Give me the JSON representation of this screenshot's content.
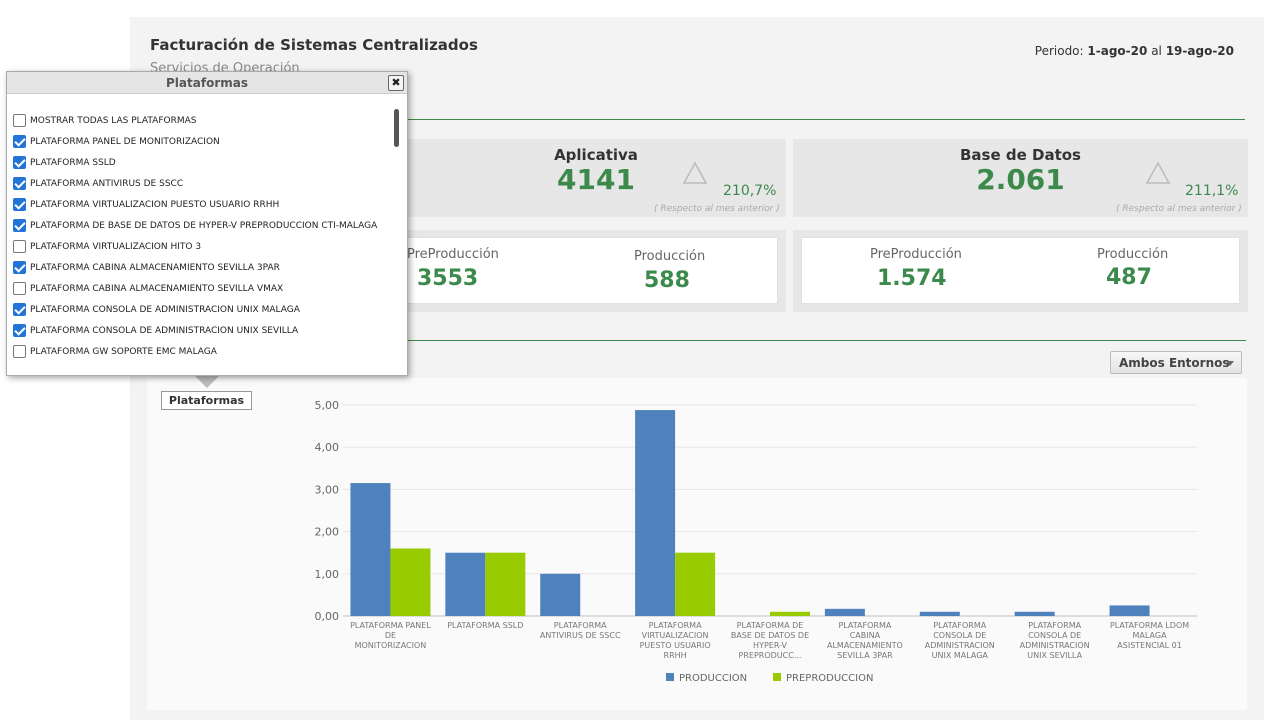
{
  "header": {
    "title": "Facturación de Sistemas Centralizados",
    "subtitle": "Servicios de Operación",
    "periodo_label": "Periodo:",
    "periodo_from": "1-ago-20",
    "periodo_sep": "al",
    "periodo_to": "19-ago-20"
  },
  "cards": [
    {
      "title": "Aplicativa",
      "value": "4141",
      "pct": "210,7%",
      "note": "( Respecto al mes anterior )",
      "pre_label": "PreProducción",
      "pre_value": "3553",
      "pro_label": "Producción",
      "pro_value": "588"
    },
    {
      "title": "Base de Datos",
      "value": "2.061",
      "pct": "211,1%",
      "note": "( Respecto al mes anterior )",
      "pre_label": "PreProducción",
      "pre_value": "1.574",
      "pro_label": "Producción",
      "pro_value": "487"
    }
  ],
  "entornos_dropdown": {
    "selected": "Ambos Entornos"
  },
  "plataformas_button": "Plataformas",
  "popup": {
    "title": "Plataformas",
    "close": "✖",
    "options": [
      {
        "label": "MOSTRAR TODAS LAS PLATAFORMAS",
        "checked": false
      },
      {
        "label": "PLATAFORMA PANEL DE MONITORIZACION",
        "checked": true
      },
      {
        "label": "PLATAFORMA SSLD",
        "checked": true
      },
      {
        "label": "PLATAFORMA ANTIVIRUS DE SSCC",
        "checked": true
      },
      {
        "label": "PLATAFORMA VIRTUALIZACION PUESTO USUARIO RRHH",
        "checked": true
      },
      {
        "label": "PLATAFORMA DE BASE DE DATOS DE HYPER-V PREPRODUCCION CTI-MALAGA",
        "checked": true
      },
      {
        "label": "PLATAFORMA VIRTUALIZACION HITO 3",
        "checked": false
      },
      {
        "label": "PLATAFORMA CABINA ALMACENAMIENTO SEVILLA 3PAR",
        "checked": true
      },
      {
        "label": "PLATAFORMA CABINA ALMACENAMIENTO SEVILLA VMAX",
        "checked": false
      },
      {
        "label": "PLATAFORMA CONSOLA DE ADMINISTRACION UNIX MALAGA",
        "checked": true
      },
      {
        "label": "PLATAFORMA CONSOLA DE ADMINISTRACION UNIX SEVILLA",
        "checked": true
      },
      {
        "label": "PLATAFORMA GW SOPORTE EMC MALAGA",
        "checked": false
      }
    ]
  },
  "colors": {
    "produccion": "#4f81bd",
    "preproduccion": "#99cc00",
    "accent": "#3c8a4b"
  },
  "chart_data": {
    "type": "bar",
    "categories": [
      [
        "PLATAFORMA PANEL",
        "DE",
        "MONITORIZACION"
      ],
      [
        "PLATAFORMA SSLD"
      ],
      [
        "PLATAFORMA",
        "ANTIVIRUS DE SSCC"
      ],
      [
        "PLATAFORMA",
        "VIRTUALIZACION",
        "PUESTO USUARIO",
        "RRHH"
      ],
      [
        "PLATAFORMA DE",
        "BASE DE DATOS DE",
        "HYPER-V",
        "PREPRODUCC..."
      ],
      [
        "PLATAFORMA",
        "CABINA",
        "ALMACENAMIENTO",
        "SEVILLA 3PAR"
      ],
      [
        "PLATAFORMA",
        "CONSOLA DE",
        "ADMINISTRACION",
        "UNIX MALAGA"
      ],
      [
        "PLATAFORMA",
        "CONSOLA DE",
        "ADMINISTRACION",
        "UNIX SEVILLA"
      ],
      [
        "PLATAFORMA LDOM",
        "MALAGA",
        "ASISTENCIAL 01"
      ]
    ],
    "series": [
      {
        "name": "PRODUCCION",
        "values": [
          3.15,
          1.5,
          1.0,
          4.88,
          0,
          0.17,
          0.1,
          0.1,
          0.25
        ]
      },
      {
        "name": "PREPRODUCCION",
        "values": [
          1.6,
          1.5,
          0,
          1.5,
          0.1,
          0,
          0,
          0,
          0
        ]
      }
    ],
    "yticks": [
      "0,00",
      "1,00",
      "2,00",
      "3,00",
      "4,00",
      "5,00"
    ],
    "ylim": [
      0,
      5
    ],
    "grid": true,
    "legend": "bottom"
  }
}
